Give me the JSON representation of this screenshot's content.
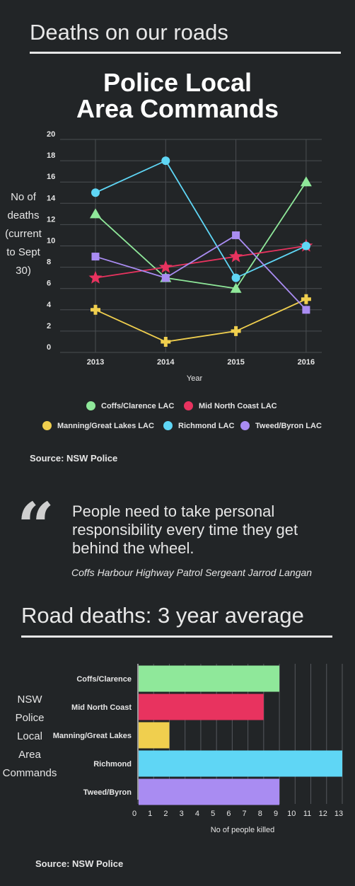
{
  "header": {
    "title": "Deaths on our roads"
  },
  "chart1": {
    "title_line1": "Police Local",
    "title_line2": "Area Commands",
    "ylabel_lines": [
      "No of",
      "deaths",
      "(current",
      "to Sept",
      "30)"
    ],
    "source": "Source: NSW Police"
  },
  "quote": {
    "text": "People need to take personal responsibility every time they get behind the wheel.",
    "attribution": "Coffs Harbour Highway Patrol Sergeant Jarrod Langan"
  },
  "section2": {
    "title": "Road deaths: 3 year average"
  },
  "chart2": {
    "ylabel_lines": [
      "NSW",
      "Police",
      "Local",
      "Area",
      "Commands"
    ],
    "source": "Source: NSW Police"
  },
  "chart_data": [
    {
      "type": "line",
      "x": [
        "2013",
        "2014",
        "2015",
        "2016"
      ],
      "xlabel": "Year",
      "ylabel": "No of deaths (current to Sept 30)",
      "ylim": [
        0,
        20
      ],
      "yticks": [
        0,
        2,
        4,
        6,
        8,
        10,
        12,
        14,
        16,
        18,
        20
      ],
      "grid": true,
      "legend_position": "bottom",
      "series": [
        {
          "name": "Coffs/Clarence LAC",
          "color": "#8fe89a",
          "marker": "triangle",
          "values": [
            13,
            7,
            6,
            16
          ]
        },
        {
          "name": "Mid North Coast LAC",
          "color": "#e8335f",
          "marker": "star",
          "values": [
            7,
            8,
            9,
            10
          ]
        },
        {
          "name": "Manning/Great Lakes LAC",
          "color": "#f0cf4e",
          "marker": "plus",
          "values": [
            4,
            1,
            2,
            5
          ]
        },
        {
          "name": "Richmond LAC",
          "color": "#5fd6f5",
          "marker": "circle",
          "values": [
            15,
            18,
            7,
            10
          ]
        },
        {
          "name": "Tweed/Byron LAC",
          "color": "#a98cf2",
          "marker": "square",
          "values": [
            9,
            7,
            11,
            4
          ]
        }
      ]
    },
    {
      "type": "bar",
      "orientation": "horizontal",
      "categories": [
        "Coffs/Clarence",
        "Mid North Coast",
        "Manning/Great Lakes",
        "Richmond",
        "Tweed/Byron"
      ],
      "values": [
        9,
        8,
        2,
        13,
        9
      ],
      "colors": [
        "#8fe89a",
        "#e8335f",
        "#f0cf4e",
        "#5fd6f5",
        "#a98cf2"
      ],
      "xlabel": "No of people killed",
      "xlim": [
        0,
        13
      ],
      "xticks": [
        0,
        1,
        2,
        3,
        4,
        5,
        6,
        7,
        8,
        9,
        10,
        11,
        12,
        13
      ],
      "grid": true
    }
  ]
}
